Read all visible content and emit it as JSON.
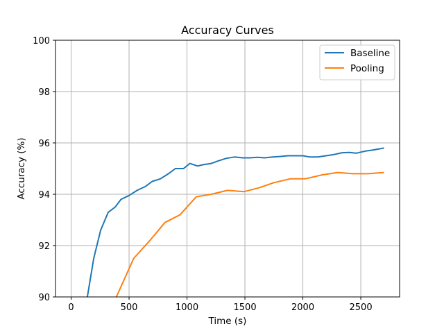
{
  "chart_data": {
    "type": "line",
    "title": "Accuracy Curves",
    "xlabel": "Time (s)",
    "ylabel": "Accuracy (%)",
    "xlim": [
      -135,
      2835
    ],
    "ylim": [
      90,
      100
    ],
    "xticks": [
      0,
      500,
      1000,
      1500,
      2000,
      2500
    ],
    "yticks": [
      90,
      92,
      94,
      96,
      98,
      100
    ],
    "grid": true,
    "legend_position": "top-right",
    "series": [
      {
        "name": "Baseline",
        "color": "#1f77b4",
        "x": [
          140,
          195,
          255,
          320,
          380,
          430,
          500,
          570,
          640,
          700,
          770,
          840,
          900,
          970,
          1025,
          1090,
          1140,
          1210,
          1270,
          1340,
          1410,
          1480,
          1540,
          1610,
          1670,
          1740,
          1800,
          1870,
          1930,
          2000,
          2060,
          2130,
          2200,
          2270,
          2340,
          2400,
          2460,
          2540,
          2600,
          2700
        ],
        "y": [
          90.0,
          91.5,
          92.6,
          93.3,
          93.5,
          93.8,
          93.95,
          94.15,
          94.3,
          94.5,
          94.6,
          94.8,
          95.0,
          95.0,
          95.2,
          95.1,
          95.15,
          95.2,
          95.3,
          95.4,
          95.45,
          95.42,
          95.42,
          95.44,
          95.42,
          95.45,
          95.47,
          95.5,
          95.5,
          95.5,
          95.45,
          95.45,
          95.5,
          95.55,
          95.62,
          95.63,
          95.6,
          95.68,
          95.72,
          95.8
        ]
      },
      {
        "name": "Pooling",
        "color": "#ff7f0e",
        "x": [
          390,
          540,
          680,
          810,
          940,
          1080,
          1210,
          1350,
          1490,
          1620,
          1750,
          1890,
          2020,
          2160,
          2300,
          2430,
          2560,
          2700
        ],
        "y": [
          90.0,
          91.5,
          92.2,
          92.9,
          93.2,
          93.9,
          94.0,
          94.15,
          94.1,
          94.25,
          94.45,
          94.6,
          94.6,
          94.75,
          94.85,
          94.8,
          94.8,
          94.85
        ]
      }
    ]
  }
}
